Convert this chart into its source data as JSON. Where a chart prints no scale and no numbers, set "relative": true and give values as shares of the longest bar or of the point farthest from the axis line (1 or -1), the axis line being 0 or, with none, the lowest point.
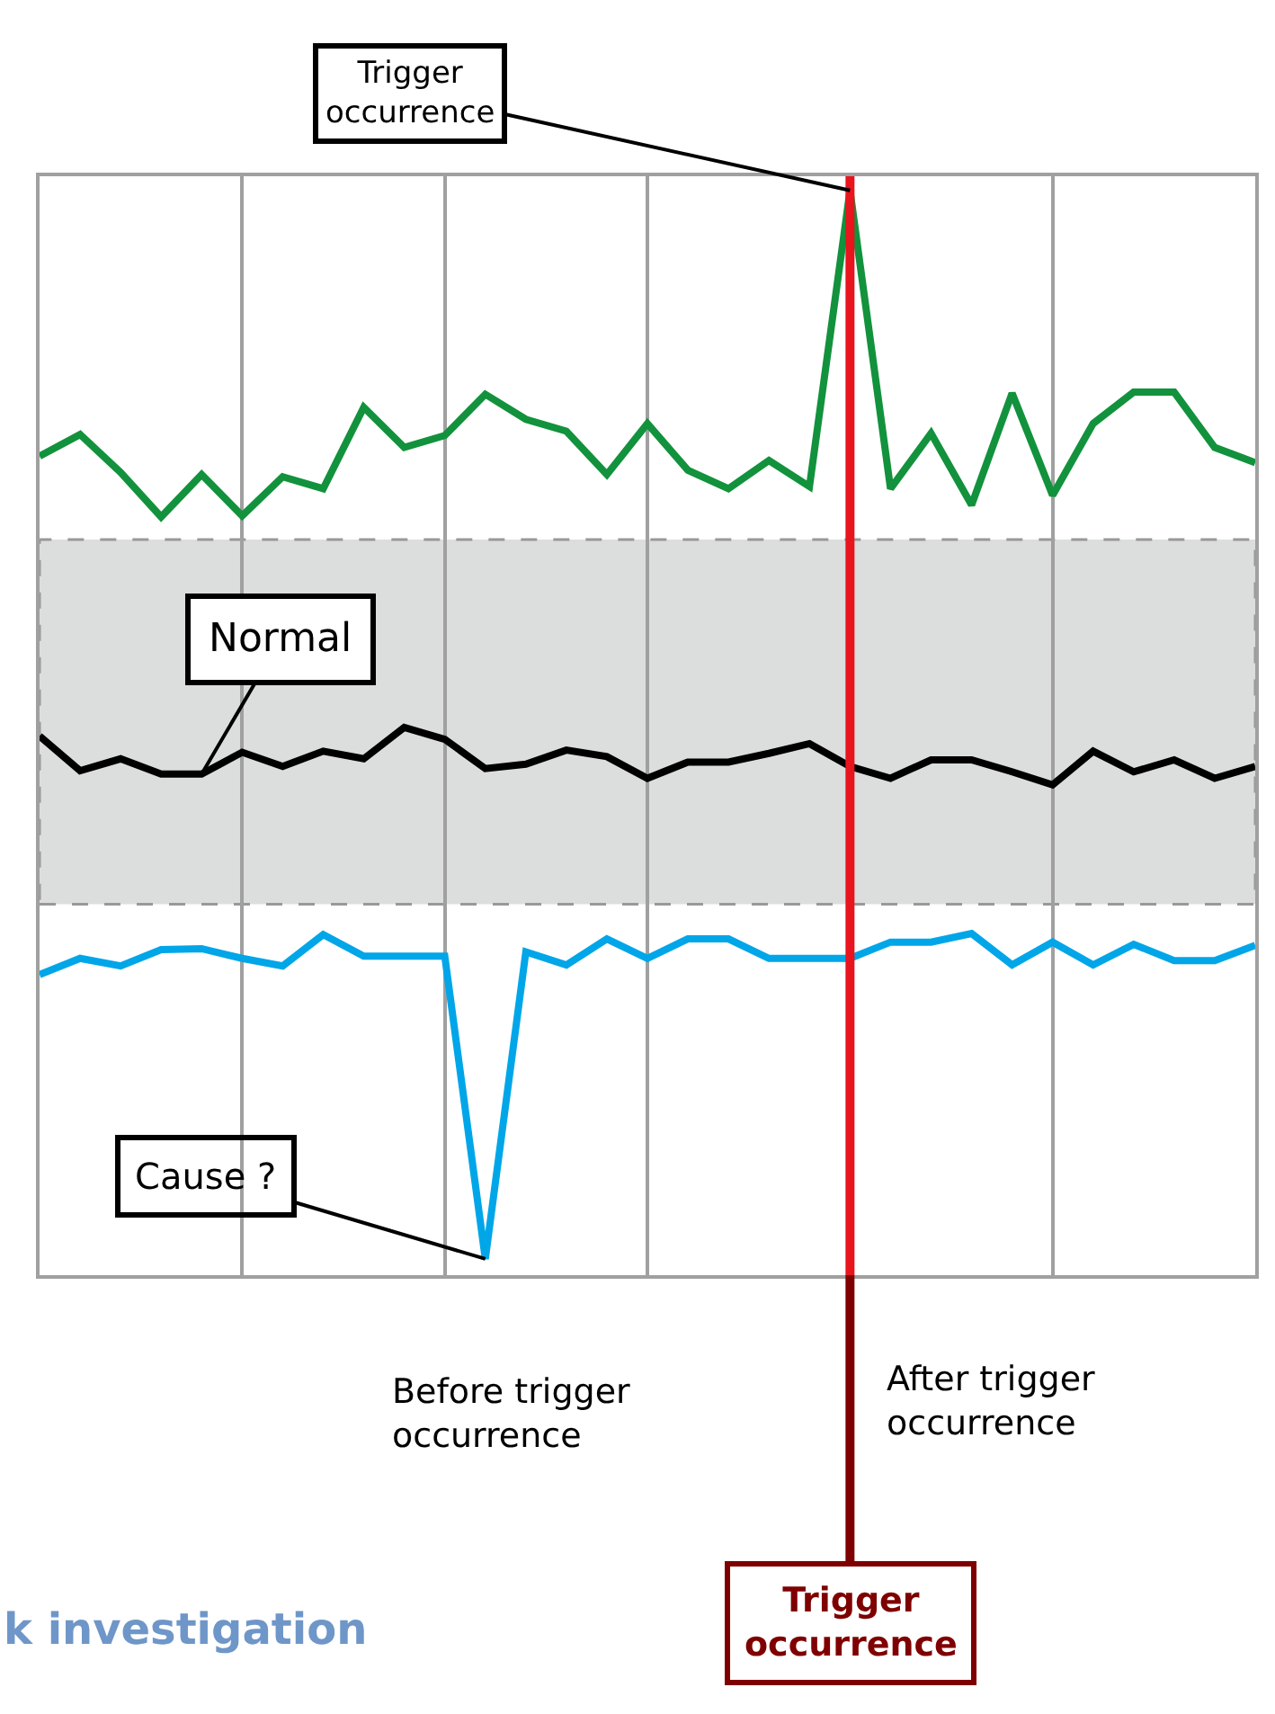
{
  "chart_data": {
    "type": "line",
    "relative": true,
    "grid": "x",
    "marker": "none",
    "line_style": "solid",
    "categories": [
      null,
      null,
      null,
      null,
      null,
      null,
      null,
      null,
      null,
      null,
      null,
      null,
      null,
      null,
      null,
      null,
      null,
      null,
      null,
      null,
      null,
      null,
      null,
      null,
      null,
      null,
      null,
      null,
      null,
      null,
      null
    ],
    "series": [
      {
        "color": "#12923c",
        "values": [
          0.755,
          0.775,
          0.74,
          0.699,
          0.738,
          0.7,
          0.736,
          0.725,
          0.8,
          0.763,
          0.774,
          0.812,
          0.789,
          0.778,
          0.738,
          0.785,
          0.742,
          0.725,
          0.751,
          0.727,
          1,
          0.725,
          0.776,
          0.71,
          0.813,
          0.719,
          0.785,
          0.814,
          0.814,
          0.763,
          0.749
        ]
      },
      {
        "color": "#000000",
        "values": [
          0.497,
          0.465,
          0.476,
          0.462,
          0.462,
          0.482,
          0.469,
          0.483,
          0.476,
          0.505,
          0.494,
          0.467,
          0.471,
          0.484,
          0.478,
          0.458,
          0.473,
          0.473,
          0.481,
          0.49,
          0.469,
          0.458,
          0.475,
          0.475,
          0.464,
          0.452,
          0.483,
          0.464,
          0.475,
          0.458,
          0.469
        ]
      },
      {
        "color": "#00a6e8",
        "values": [
          0.277,
          0.292,
          0.285,
          0.3,
          0.301,
          0.292,
          0.285,
          0.314,
          0.294,
          0.294,
          0.294,
          0.015,
          0.298,
          0.286,
          0.31,
          0.292,
          0.31,
          0.31,
          0.292,
          0.292,
          0.292,
          0.307,
          0.307,
          0.315,
          0.286,
          0.307,
          0.286,
          0.305,
          0.29,
          0.29,
          0.304
        ]
      }
    ],
    "bands": [
      {
        "axis": "y",
        "from": 0.342,
        "to": 0.678,
        "color": "#dcdddd"
      }
    ],
    "annotations": [
      "Trigger occurrence",
      "Normal",
      "Cause ?",
      "Before trigger occurrence",
      "After trigger occurrence",
      "Trigger occurrence",
      "k investigation"
    ]
  }
}
